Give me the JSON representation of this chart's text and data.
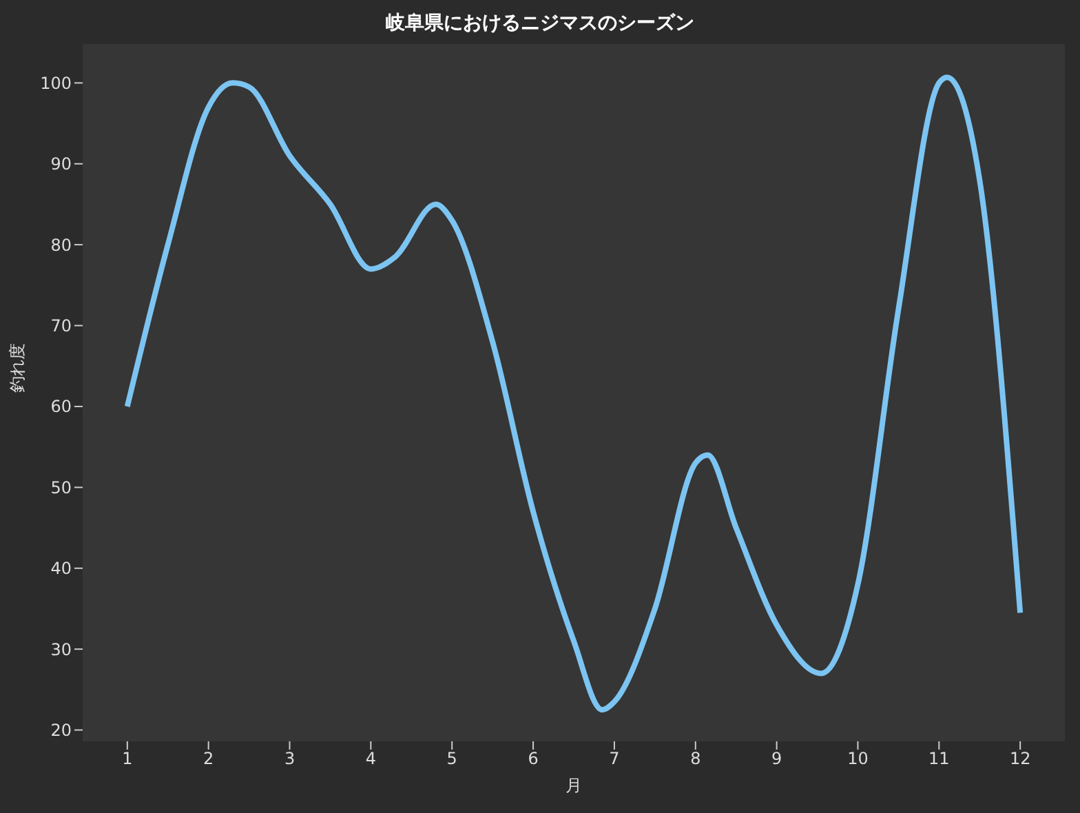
{
  "chart_data": {
    "type": "line",
    "title": "岐阜県におけるニジマスのシーズン",
    "xlabel": "月",
    "ylabel": "釣れ度",
    "x": [
      1,
      1.5,
      2,
      2.3,
      2.5,
      3,
      3.5,
      4,
      4.3,
      4.8,
      5,
      5.5,
      6,
      6.5,
      6.85,
      7,
      7.5,
      8,
      8.15,
      8.5,
      9,
      9.55,
      10,
      10.5,
      11,
      11.1,
      11.5,
      12
    ],
    "series": [
      {
        "color": "#7cc4f2",
        "values": [
          60,
          80,
          97,
          100,
          99.5,
          91,
          85,
          77,
          78.5,
          85,
          83,
          68,
          47,
          31,
          22.5,
          23.5,
          35,
          53,
          54,
          45,
          33,
          27,
          38,
          72,
          100,
          100.7,
          88,
          34.5
        ]
      }
    ],
    "xlim": [
      0.45,
      12.55
    ],
    "xticks": [
      1,
      2,
      3,
      4,
      5,
      6,
      7,
      8,
      9,
      10,
      11,
      12
    ],
    "ylim": [
      18.6,
      104.8
    ],
    "yticks": [
      20,
      30,
      40,
      50,
      60,
      70,
      80,
      90,
      100
    ],
    "marker": "none",
    "line_style": "solid"
  }
}
